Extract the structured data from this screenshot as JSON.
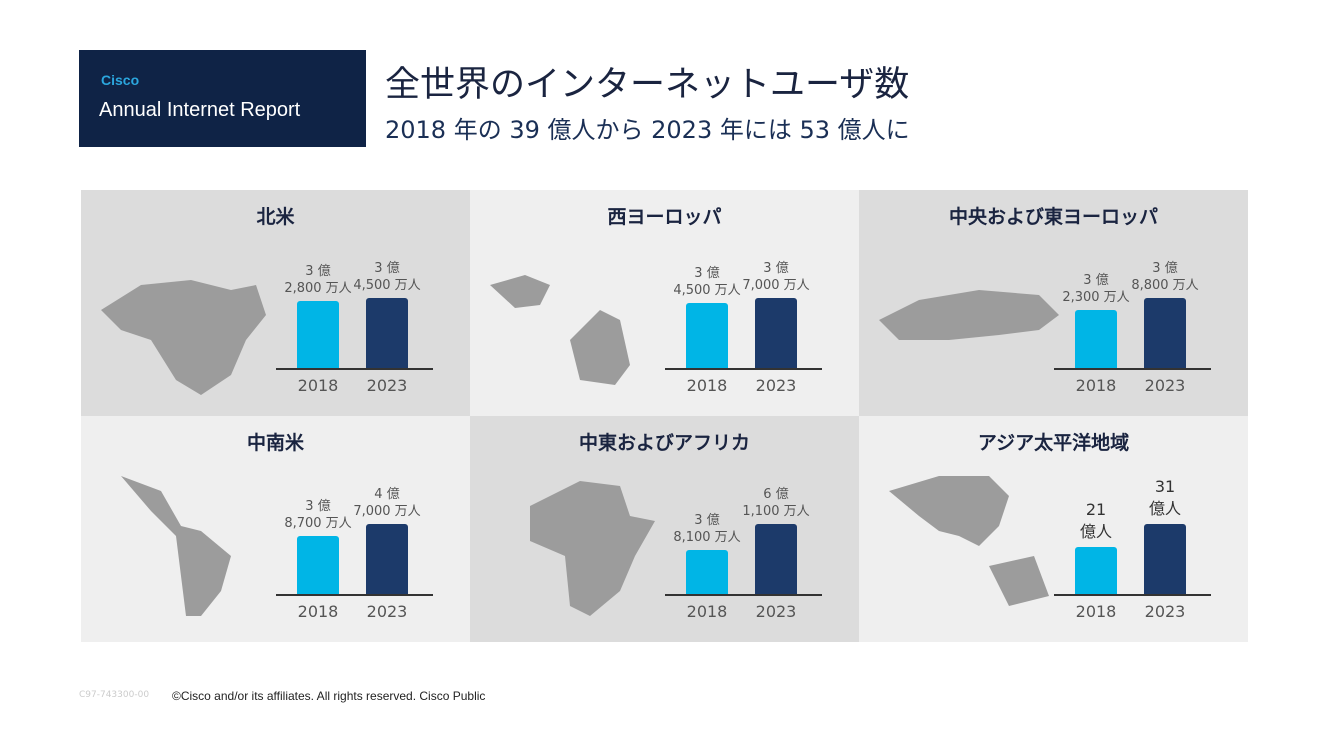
{
  "header": {
    "brand": "Cisco",
    "report": "Annual Internet Report",
    "title": "全世界のインターネットユーザ数",
    "subtitle": "2018 年の 39 億人から 2023 年には 53 億人に"
  },
  "footer": {
    "code": "C97-743300-00",
    "copyright": "©Cisco and/or its affiliates. All rights reserved. Cisco Public"
  },
  "chart_data": [
    {
      "type": "bar",
      "title": "北米",
      "categories": [
        "2018",
        "2023"
      ],
      "values": [
        328,
        345
      ],
      "value_labels": [
        "3 億\n2,800 万人",
        "3 億\n4,500 万人"
      ],
      "colors": [
        "#00b5e6",
        "#1c3a6a"
      ]
    },
    {
      "type": "bar",
      "title": "西ヨーロッパ",
      "categories": [
        "2018",
        "2023"
      ],
      "values": [
        345,
        370
      ],
      "value_labels": [
        "3 億\n4,500 万人",
        "3 億\n7,000 万人"
      ],
      "colors": [
        "#00b5e6",
        "#1c3a6a"
      ]
    },
    {
      "type": "bar",
      "title": "中央および東ヨーロッパ",
      "categories": [
        "2018",
        "2023"
      ],
      "values": [
        323,
        388
      ],
      "value_labels": [
        "3 億\n2,300 万人",
        "3 億\n8,800 万人"
      ],
      "colors": [
        "#00b5e6",
        "#1c3a6a"
      ]
    },
    {
      "type": "bar",
      "title": "中南米",
      "categories": [
        "2018",
        "2023"
      ],
      "values": [
        387,
        470
      ],
      "value_labels": [
        "3 億\n8,700 万人",
        "4 億\n7,000 万人"
      ],
      "colors": [
        "#00b5e6",
        "#1c3a6a"
      ]
    },
    {
      "type": "bar",
      "title": "中東およびアフリカ",
      "categories": [
        "2018",
        "2023"
      ],
      "values": [
        381,
        611
      ],
      "value_labels": [
        "3 億\n8,100 万人",
        "6 億\n1,100 万人"
      ],
      "colors": [
        "#00b5e6",
        "#1c3a6a"
      ]
    },
    {
      "type": "bar",
      "title": "アジア太平洋地域",
      "categories": [
        "2018",
        "2023"
      ],
      "values": [
        2100,
        3100
      ],
      "value_labels": [
        "21\n億人",
        "31\n億人"
      ],
      "colors": [
        "#00b5e6",
        "#1c3a6a"
      ]
    }
  ]
}
